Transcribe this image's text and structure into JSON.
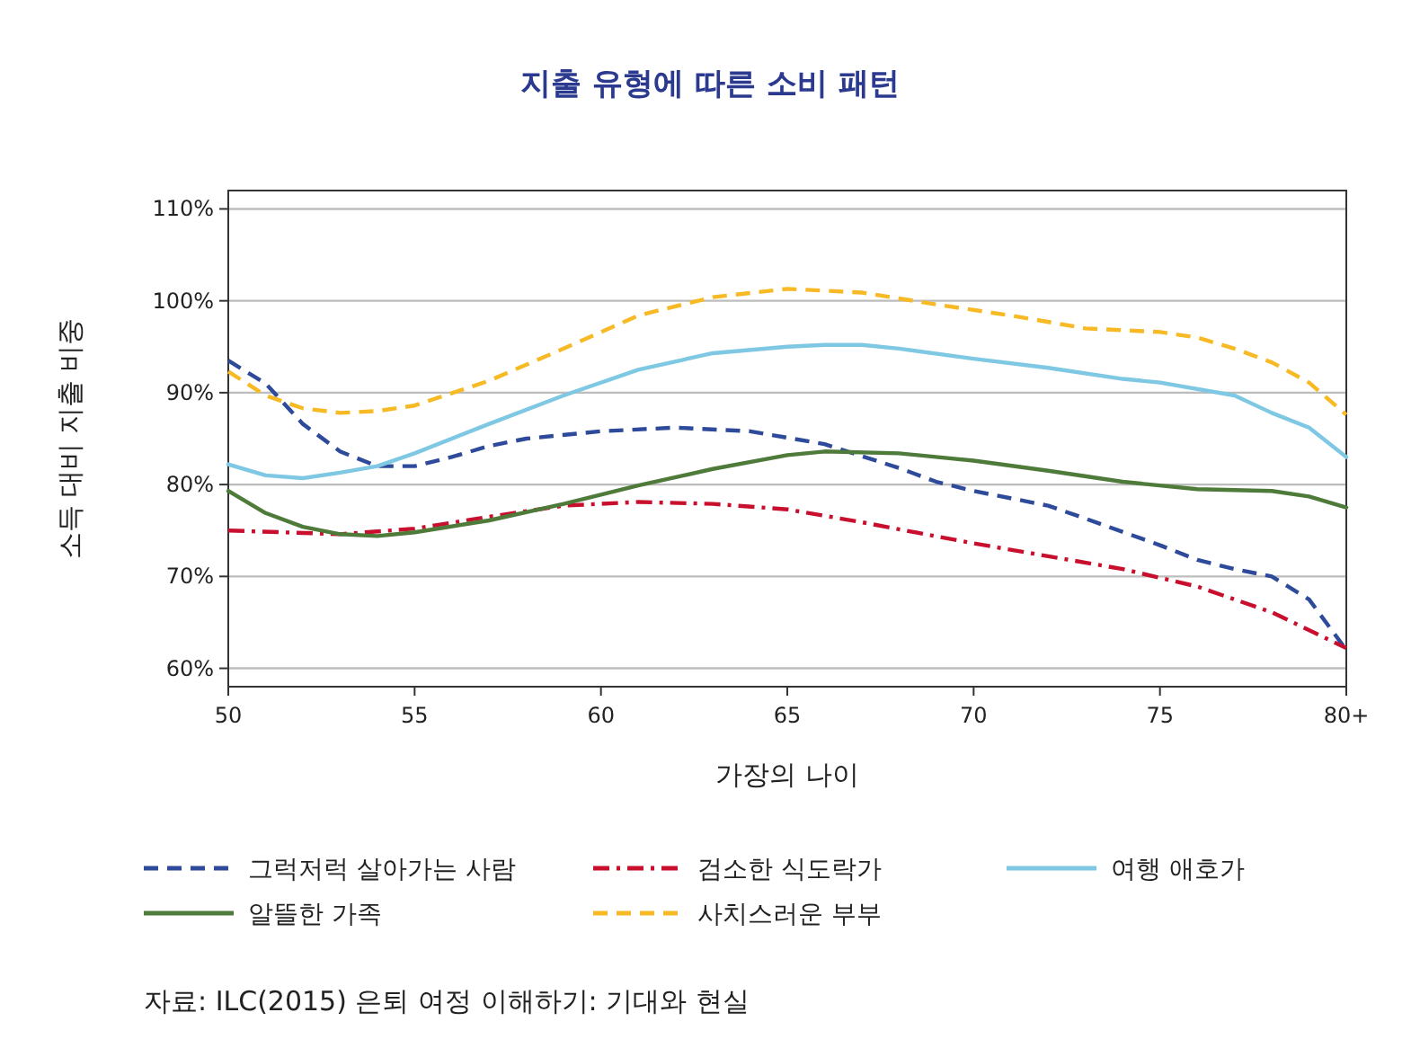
{
  "chart_data": {
    "type": "line",
    "title": "지출 유형에 따른 소비 패턴",
    "xlabel": "가장의 나이",
    "ylabel": "소득 대비 지출 비중",
    "annotations": [
      "자료: ILC(2015) 은퇴 여정 이해하기: 기대와 현실"
    ],
    "xlim": [
      50,
      80
    ],
    "ylim": [
      58,
      112
    ],
    "xticks": [
      50,
      55,
      60,
      65,
      70,
      75,
      {
        "value": 80,
        "label": "80+"
      }
    ],
    "yticks": [
      {
        "value": 60,
        "label": "60%"
      },
      {
        "value": 70,
        "label": "70%"
      },
      {
        "value": 80,
        "label": "80%"
      },
      {
        "value": 90,
        "label": "90%"
      },
      {
        "value": 100,
        "label": "100%"
      },
      {
        "value": 110,
        "label": "110%"
      }
    ],
    "grid": "y",
    "legend": "bottom",
    "series": [
      {
        "name": "그럭저럭 살아가는 사람",
        "color": "#2e4a9a",
        "line_style": "dashed",
        "x": [
          50,
          51,
          52,
          53,
          54,
          55,
          56,
          57,
          58,
          60,
          62,
          64,
          66,
          68,
          69,
          70,
          72,
          73,
          75,
          76,
          77,
          78,
          79,
          80
        ],
        "values": [
          93.5,
          91,
          86.6,
          83.6,
          82,
          82,
          83,
          84.2,
          85,
          85.8,
          86.2,
          85.8,
          84.4,
          81.8,
          80.3,
          79.3,
          77.7,
          76.3,
          73.4,
          71.8,
          70.8,
          70,
          67.5,
          62
        ]
      },
      {
        "name": "검소한 식도락가",
        "color": "#c8102e",
        "line_style": "dashdot",
        "x": [
          50,
          53,
          55,
          57,
          59,
          61,
          63,
          65,
          67,
          70,
          72,
          74,
          76,
          78,
          80
        ],
        "values": [
          75,
          74.6,
          75.2,
          76.5,
          77.7,
          78.1,
          77.9,
          77.3,
          75.9,
          73.6,
          72.2,
          70.8,
          68.9,
          66.1,
          62.2
        ]
      },
      {
        "name": "여행 애호가",
        "color": "#7ec8e3",
        "line_style": "solid",
        "x": [
          50,
          51,
          52,
          53,
          54,
          55,
          57,
          59,
          61,
          63,
          65,
          66,
          67,
          68,
          70,
          72,
          74,
          75,
          77,
          78,
          79,
          80
        ],
        "values": [
          82.2,
          81,
          80.7,
          81.3,
          82,
          83.4,
          86.6,
          89.7,
          92.5,
          94.3,
          95,
          95.2,
          95.2,
          94.8,
          93.7,
          92.7,
          91.5,
          91.1,
          89.7,
          87.8,
          86.2,
          83
        ]
      },
      {
        "name": "알뜰한 가족",
        "color": "#4e7a3a",
        "line_style": "solid",
        "x": [
          50,
          51,
          52,
          53,
          54,
          55,
          57,
          59,
          61,
          63,
          65,
          66,
          68,
          70,
          72,
          74,
          76,
          78,
          79,
          80
        ],
        "values": [
          79.3,
          76.9,
          75.4,
          74.6,
          74.4,
          74.8,
          76.1,
          77.9,
          79.9,
          81.7,
          83.2,
          83.6,
          83.4,
          82.6,
          81.5,
          80.3,
          79.5,
          79.3,
          78.7,
          77.5
        ]
      },
      {
        "name": "사치스러운 부부",
        "color": "#f7b924",
        "line_style": "dashed",
        "x": [
          50,
          51,
          52,
          53,
          54,
          55,
          57,
          59,
          61,
          63,
          65,
          67,
          69,
          71,
          73,
          75,
          76,
          77,
          78,
          79,
          80
        ],
        "values": [
          92.3,
          89.7,
          88.3,
          87.8,
          88,
          88.6,
          91.3,
          94.8,
          98.4,
          100.4,
          101.3,
          100.9,
          99.6,
          98.4,
          97,
          96.6,
          96,
          94.8,
          93.3,
          91.1,
          87.6
        ]
      }
    ]
  }
}
